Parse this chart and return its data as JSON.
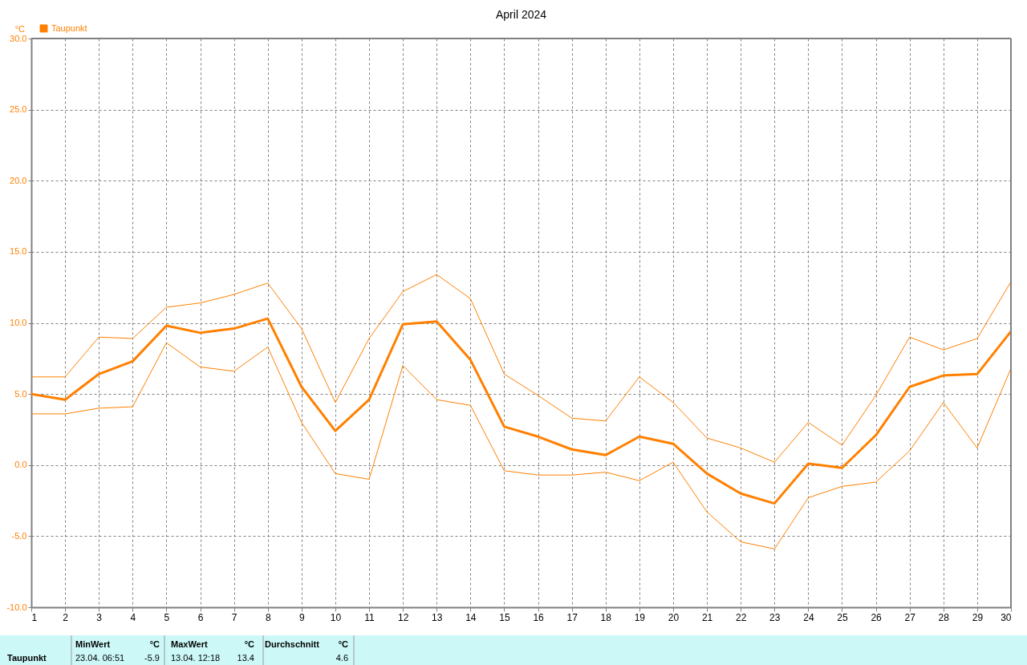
{
  "chart_data": {
    "type": "line",
    "title": "April 2024",
    "ylabel": "°C",
    "x": [
      1,
      2,
      3,
      4,
      5,
      6,
      7,
      8,
      9,
      10,
      11,
      12,
      13,
      14,
      15,
      16,
      17,
      18,
      19,
      20,
      21,
      22,
      23,
      24,
      25,
      26,
      27,
      28,
      29,
      30
    ],
    "series": [
      {
        "name": "Taupunkt",
        "color": "#ff8000",
        "values": [
          5.0,
          4.6,
          6.4,
          7.3,
          9.8,
          9.3,
          9.6,
          10.3,
          5.5,
          2.4,
          4.6,
          9.9,
          10.1,
          7.4,
          2.7,
          2.0,
          1.1,
          0.7,
          2.0,
          1.5,
          -0.6,
          -2.0,
          -2.7,
          0.1,
          -0.2,
          2.1,
          5.5,
          6.3,
          6.4,
          9.4
        ]
      },
      {
        "color": "#ff8000",
        "values": [
          6.2,
          6.2,
          9.0,
          8.9,
          11.1,
          11.4,
          12.0,
          12.8,
          9.6,
          4.4,
          8.9,
          12.2,
          13.4,
          11.7,
          6.4,
          4.9,
          3.3,
          3.1,
          6.2,
          4.4,
          1.9,
          1.2,
          0.2,
          3.0,
          1.4,
          4.9,
          9.0,
          8.1,
          8.9,
          12.9
        ]
      },
      {
        "color": "#ff8000",
        "values": [
          3.6,
          3.6,
          4.0,
          4.1,
          8.6,
          6.9,
          6.6,
          8.3,
          3.0,
          -0.6,
          -1.0,
          7.0,
          4.6,
          4.2,
          -0.4,
          -0.7,
          -0.7,
          -0.5,
          -1.1,
          0.2,
          -3.3,
          -5.4,
          -5.9,
          -2.3,
          -1.5,
          -1.2,
          1.0,
          4.4,
          1.2,
          6.8
        ]
      }
    ],
    "xlim": [
      1,
      30
    ],
    "xticks": [
      1,
      2,
      3,
      4,
      5,
      6,
      7,
      8,
      9,
      10,
      11,
      12,
      13,
      14,
      15,
      16,
      17,
      18,
      19,
      20,
      21,
      22,
      23,
      24,
      25,
      26,
      27,
      28,
      29,
      30
    ],
    "ylim": [
      -10,
      30
    ],
    "yticks": [
      {
        "value": -10,
        "label": "-10.0"
      },
      {
        "value": -5,
        "label": "-5.0"
      },
      {
        "value": 0,
        "label": "0.0"
      },
      {
        "value": 5,
        "label": "5.0"
      },
      {
        "value": 10,
        "label": "10.0"
      },
      {
        "value": 15,
        "label": "15.0"
      },
      {
        "value": 20,
        "label": "20.0"
      },
      {
        "value": 25,
        "label": "25.0"
      },
      {
        "value": 30,
        "label": "30.0"
      }
    ],
    "grid": true,
    "legend": "top left",
    "marker": "none",
    "line_style": "solid",
    "annotations": [
      "Taupunkt",
      "MinWert",
      "°C",
      "23.04.  06:51",
      "-5.9",
      "MaxWert",
      "°C",
      "13.04.  12:18",
      "13.4",
      "Durchschnitt",
      "°C",
      "4.6"
    ]
  }
}
